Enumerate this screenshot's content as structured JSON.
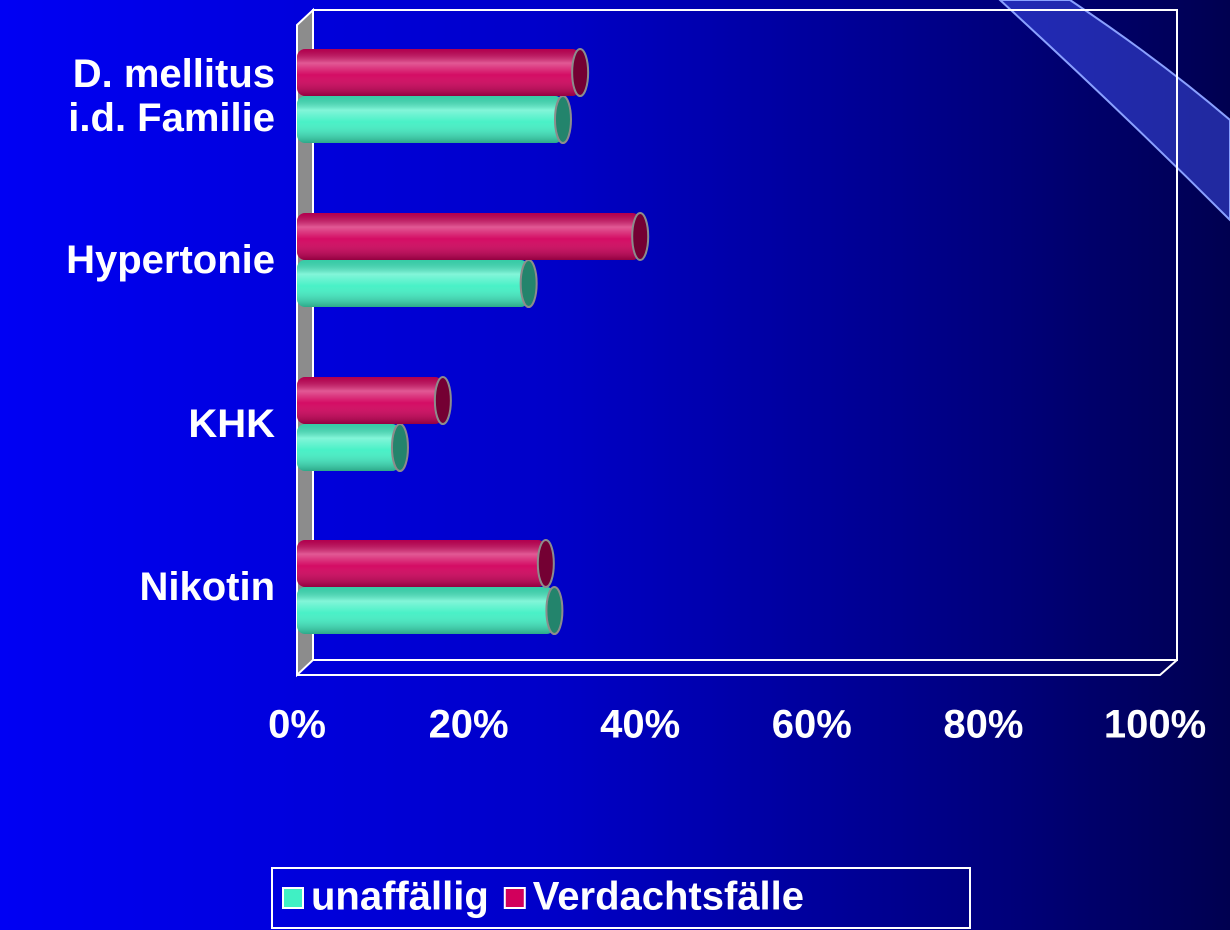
{
  "chart_data": {
    "type": "bar",
    "orientation": "horizontal",
    "categories": [
      "D. mellitus\ni.d. Familie",
      "Hypertonie",
      "KHK",
      "Nikotin"
    ],
    "series": [
      {
        "name": "unaffällig",
        "color": "#40f0c4",
        "values": [
          31,
          27,
          12,
          30
        ]
      },
      {
        "name": "Verdachtsfälle",
        "color": "#d2005c",
        "values": [
          33,
          40,
          17,
          29
        ]
      }
    ],
    "xlim": [
      0,
      100
    ],
    "xticks": [
      {
        "value": 0,
        "label": "0%"
      },
      {
        "value": 20,
        "label": "20%"
      },
      {
        "value": 40,
        "label": "40%"
      },
      {
        "value": 60,
        "label": "60%"
      },
      {
        "value": 80,
        "label": "80%"
      },
      {
        "value": 100,
        "label": "100%"
      }
    ],
    "legend": "bottom"
  }
}
